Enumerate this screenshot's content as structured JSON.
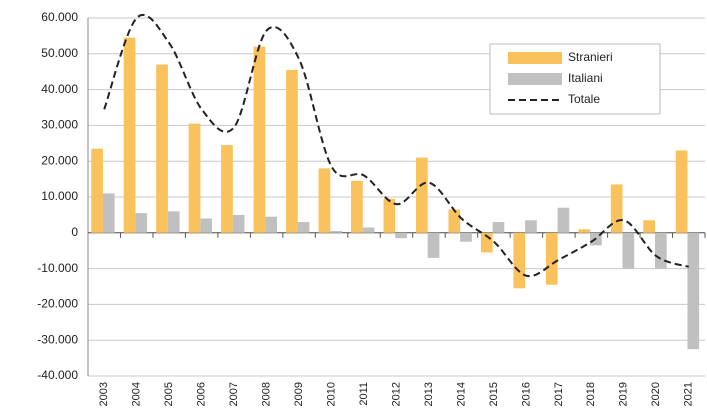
{
  "chart_data": {
    "type": "bar",
    "categories": [
      "2003",
      "2004",
      "2005",
      "2006",
      "2007",
      "2008",
      "2009",
      "2010",
      "2011",
      "2012",
      "2013",
      "2014",
      "2015",
      "2016",
      "2017",
      "2018",
      "2019",
      "2020",
      "2021"
    ],
    "series": [
      {
        "name": "Stranieri",
        "color": "#f9c25c",
        "values": [
          23500,
          54500,
          47000,
          30500,
          24500,
          52000,
          45500,
          18000,
          14500,
          9500,
          21000,
          6500,
          -5500,
          -15500,
          -14500,
          1000,
          13500,
          3500,
          23000
        ]
      },
      {
        "name": "Italiani",
        "color": "#c0c0c0",
        "values": [
          11000,
          5500,
          6000,
          4000,
          5000,
          4500,
          3000,
          500,
          1500,
          -1500,
          -7000,
          -2500,
          3000,
          3500,
          7000,
          -3500,
          -10000,
          -10000,
          -32500
        ]
      },
      {
        "name": "Totale",
        "color": "#222222",
        "type": "line",
        "values": [
          34500,
          60000,
          53000,
          34500,
          29500,
          56500,
          48500,
          18500,
          16000,
          8000,
          14000,
          4000,
          -2500,
          -12000,
          -7500,
          -2500,
          3500,
          -6500,
          -9500
        ]
      }
    ],
    "ylim": [
      -40000,
      60000
    ],
    "yticks": [
      {
        "value": -40000,
        "label": "-40.000"
      },
      {
        "value": -30000,
        "label": "-30.000"
      },
      {
        "value": -20000,
        "label": "-20.000"
      },
      {
        "value": -10000,
        "label": "-10.000"
      },
      0,
      {
        "value": 10000,
        "label": "10.000"
      },
      {
        "value": 20000,
        "label": "20.000"
      },
      {
        "value": 30000,
        "label": "30.000"
      },
      {
        "value": 40000,
        "label": "40.000"
      },
      {
        "value": 50000,
        "label": "50.000"
      },
      {
        "value": 60000,
        "label": "60.000"
      }
    ],
    "grid": true,
    "legend": "top-right"
  }
}
